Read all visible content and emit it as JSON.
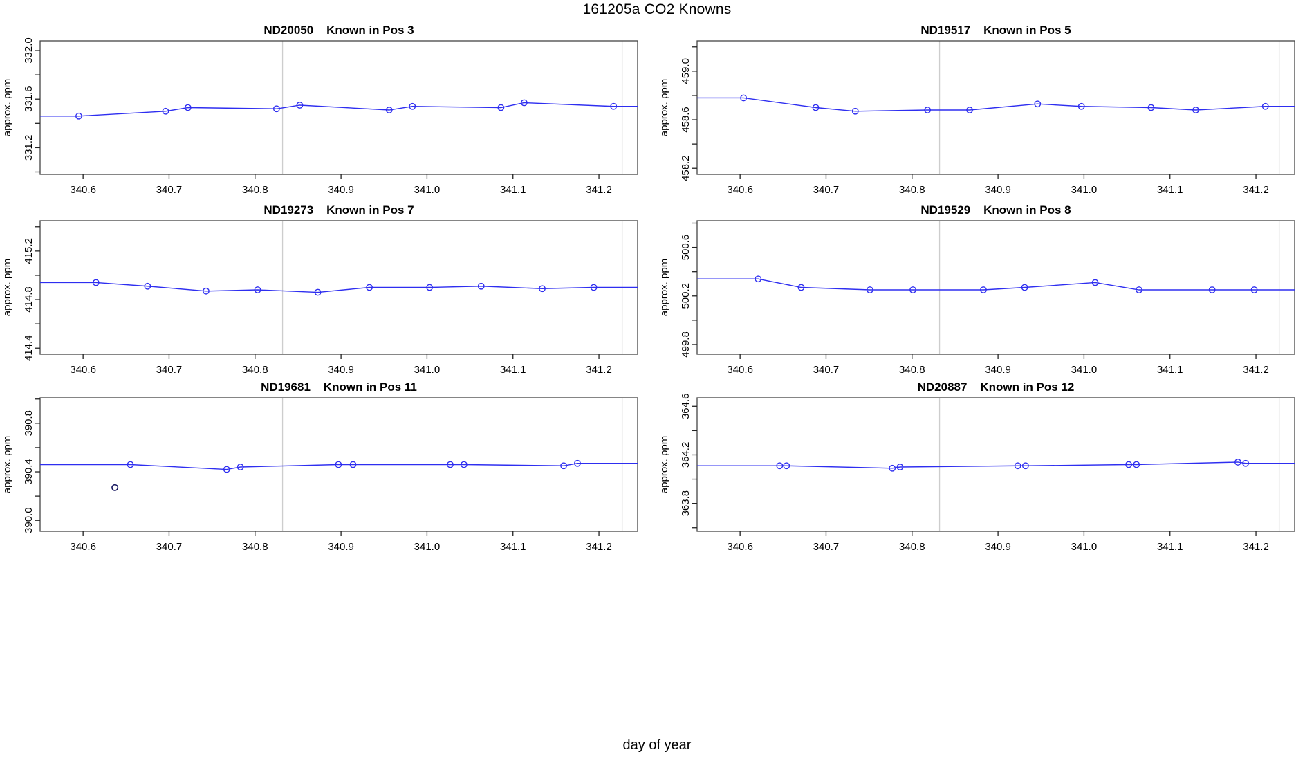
{
  "header": {
    "title": "161205a   CO2 Knowns"
  },
  "footer": {
    "xlabel": "day of year"
  },
  "colors": {
    "series": "#2e2ef0",
    "outlier": "#15155e",
    "reference_line": "#cdcdcd",
    "box": "#444444",
    "tick": "#222222",
    "text": "#000000"
  },
  "axis": {
    "xlim": [
      340.55,
      341.245
    ],
    "xticks": [
      340.6,
      340.7,
      340.8,
      340.9,
      341.0,
      341.1,
      341.2
    ],
    "ytick_step": 0.2,
    "vlines": [
      340.832,
      341.227
    ]
  },
  "chart_data": [
    {
      "type": "line",
      "title_id": "ND20050",
      "title_pos": "Known in Pos 3",
      "ylabel": "approx. ppm",
      "ylim": [
        330.98,
        332.08
      ],
      "yticks_labeled": [
        331.2,
        331.6,
        332.0
      ],
      "x": [
        340.595,
        340.696,
        340.722,
        340.825,
        340.852,
        340.956,
        340.983,
        341.086,
        341.113,
        341.217
      ],
      "y": [
        331.46,
        331.5,
        331.53,
        331.52,
        331.55,
        331.51,
        331.54,
        331.53,
        331.57,
        331.54
      ],
      "outliers": []
    },
    {
      "type": "line",
      "title_id": "ND19517",
      "title_pos": "Known in Pos 5",
      "ylabel": "approx. ppm",
      "ylim": [
        458.15,
        459.25
      ],
      "yticks_labeled": [
        458.2,
        458.6,
        459.0
      ],
      "x": [
        340.604,
        340.688,
        340.734,
        340.818,
        340.867,
        340.946,
        340.997,
        341.078,
        341.13,
        341.211
      ],
      "y": [
        458.78,
        458.7,
        458.67,
        458.68,
        458.68,
        458.73,
        458.71,
        458.7,
        458.68,
        458.71
      ],
      "outliers": []
    },
    {
      "type": "line",
      "title_id": "ND19273",
      "title_pos": "Known in Pos 7",
      "ylabel": "approx. ppm",
      "ylim": [
        414.35,
        415.45
      ],
      "yticks_labeled": [
        414.4,
        414.8,
        415.2
      ],
      "x": [
        340.615,
        340.675,
        340.743,
        340.803,
        340.873,
        340.933,
        341.003,
        341.063,
        341.134,
        341.194
      ],
      "y": [
        414.94,
        414.91,
        414.87,
        414.88,
        414.86,
        414.9,
        414.9,
        414.91,
        414.89,
        414.9
      ],
      "outliers": []
    },
    {
      "type": "line",
      "title_id": "ND19529",
      "title_pos": "Known in Pos 8",
      "ylabel": "approx. ppm",
      "ylim": [
        499.72,
        500.82
      ],
      "yticks_labeled": [
        499.8,
        500.2,
        500.6
      ],
      "x": [
        340.621,
        340.671,
        340.751,
        340.801,
        340.883,
        340.931,
        341.013,
        341.064,
        341.149,
        341.198
      ],
      "y": [
        500.34,
        500.27,
        500.25,
        500.25,
        500.25,
        500.27,
        500.31,
        500.25,
        500.25,
        500.25
      ],
      "outliers": []
    },
    {
      "type": "line",
      "title_id": "ND19681",
      "title_pos": "Known in Pos 11",
      "ylabel": "approx. ppm",
      "ylim": [
        389.91,
        391.01
      ],
      "yticks_labeled": [
        390.0,
        390.4,
        390.8
      ],
      "x": [
        340.655,
        340.767,
        340.783,
        340.897,
        340.914,
        341.027,
        341.043,
        341.159,
        341.175
      ],
      "y": [
        390.46,
        390.42,
        390.44,
        390.46,
        390.46,
        390.46,
        390.46,
        390.45,
        390.47
      ],
      "outliers": [
        {
          "x": 340.637,
          "y": 390.27
        }
      ]
    },
    {
      "type": "line",
      "title_id": "ND20887",
      "title_pos": "Known in Pos 12",
      "ylabel": "approx. ppm",
      "ylim": [
        363.57,
        364.67
      ],
      "yticks_labeled": [
        363.8,
        364.2,
        364.6
      ],
      "x": [
        340.646,
        340.654,
        340.777,
        340.786,
        340.923,
        340.932,
        341.052,
        341.061,
        341.179,
        341.188
      ],
      "y": [
        364.11,
        364.11,
        364.09,
        364.1,
        364.11,
        364.11,
        364.12,
        364.12,
        364.14,
        364.13
      ],
      "outliers": []
    }
  ]
}
